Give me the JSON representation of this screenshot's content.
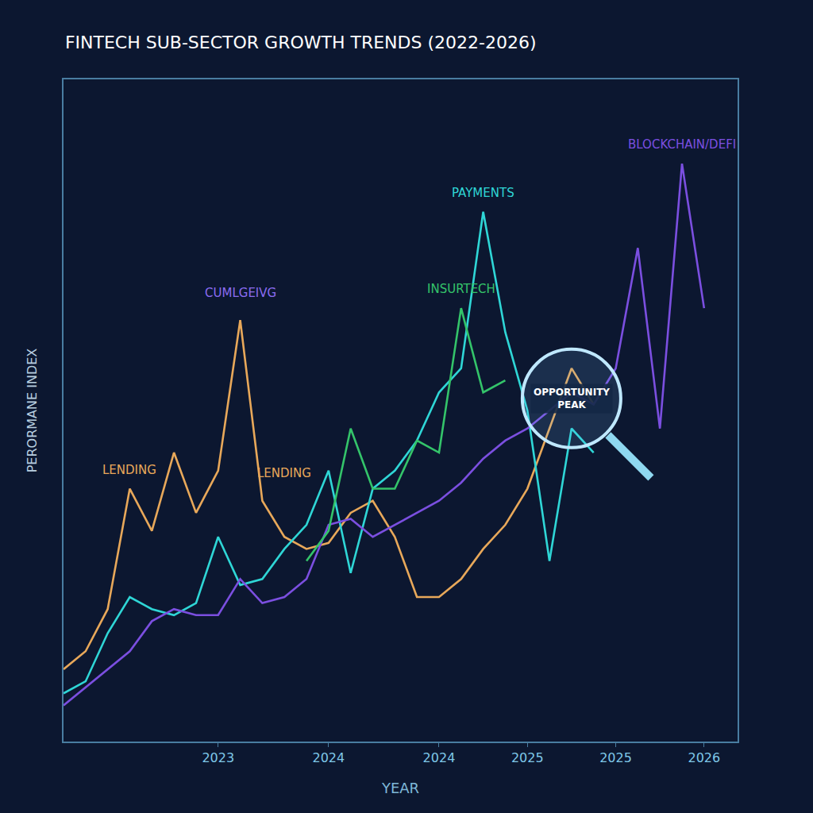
{
  "chart_data": {
    "type": "line",
    "title": "FINTECH SUB-SECTOR GROWTH TRENDS (2022-2026)",
    "x_label": "YEAR",
    "y_label": "PERORMANE INDEX",
    "categories": [
      null,
      null,
      null,
      null,
      null,
      null,
      null,
      "2023",
      null,
      null,
      null,
      null,
      "2024",
      null,
      null,
      null,
      null,
      "2024",
      null,
      null,
      null,
      "2025",
      null,
      null,
      null,
      "2025",
      null,
      null,
      null,
      "2026"
    ],
    "series": [
      {
        "name": "LENDING",
        "color": "#e8a85a",
        "line_style": "solid",
        "values": [
          12,
          15,
          22,
          42,
          35,
          48,
          38,
          45,
          70,
          40,
          34,
          32,
          33,
          38,
          40,
          34,
          24,
          24,
          27,
          32,
          36,
          42,
          52,
          62,
          56,
          null,
          null,
          null,
          null,
          null
        ]
      },
      {
        "name": "PAYMENTS",
        "color": "#2fd6d6",
        "line_style": "solid",
        "values": [
          8,
          10,
          18,
          24,
          22,
          21,
          23,
          34,
          26,
          27,
          32,
          36,
          45,
          28,
          42,
          45,
          50,
          58,
          62,
          88,
          68,
          55,
          30,
          52,
          48,
          null,
          null,
          null,
          null,
          null
        ]
      },
      {
        "name": "BLOCKCHAIN/DEFI",
        "color": "#7b4fe0",
        "line_style": "solid",
        "values": [
          6,
          9,
          12,
          15,
          20,
          22,
          21,
          21,
          27,
          23,
          24,
          27,
          36,
          37,
          34,
          36,
          38,
          40,
          43,
          47,
          50,
          52,
          55,
          58,
          56,
          62,
          82,
          52,
          96,
          72
        ]
      },
      {
        "name": "INSURTECH",
        "color": "#34c46a",
        "line_style": "solid",
        "values": [
          null,
          null,
          null,
          null,
          null,
          null,
          null,
          null,
          null,
          null,
          null,
          30,
          35,
          52,
          42,
          42,
          50,
          48,
          72,
          58,
          60,
          null,
          null,
          null,
          null,
          null,
          null,
          null,
          null,
          null
        ]
      }
    ],
    "annotations": [
      {
        "text": "CUMLGEIVG",
        "color": "#8a6cf0"
      },
      {
        "text": "LENDING",
        "color": "#e8a85a"
      },
      {
        "text": "OPPORTUNITY PEAK",
        "color": "#ffffff"
      }
    ],
    "ylim": [
      0,
      110
    ],
    "yticks": [],
    "tick_labels": "x",
    "grid": false
  }
}
